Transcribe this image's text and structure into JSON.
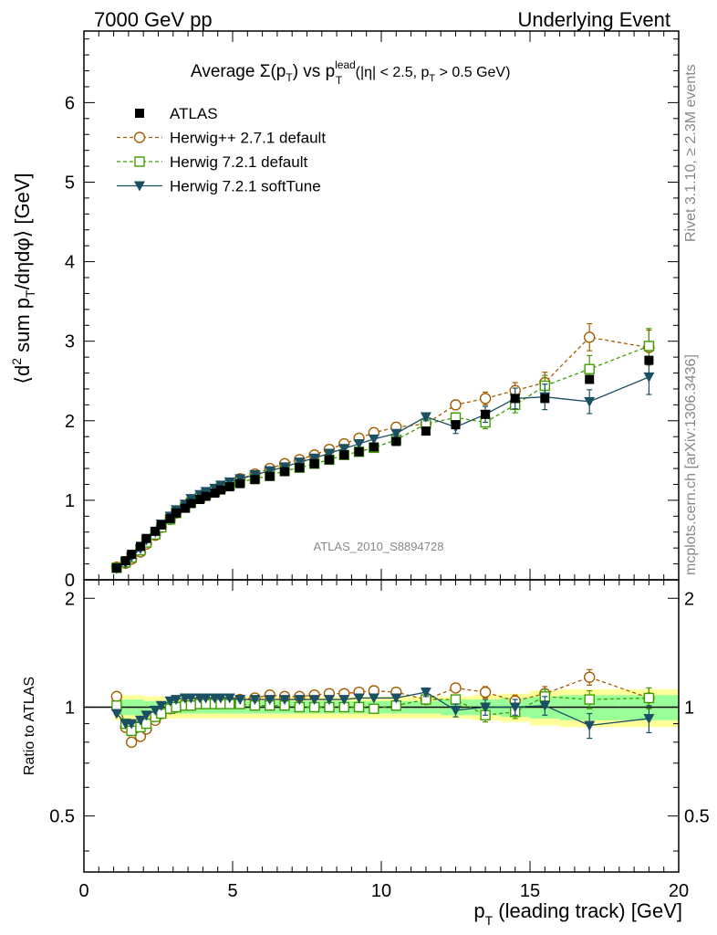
{
  "header": {
    "left": "7000 GeV pp",
    "right": "Underlying Event"
  },
  "side": {
    "rivet": "Rivet 3.1.10, ≥ 2.3M events",
    "mcplots": "mcplots.cern.ch [arXiv:1306.3436]"
  },
  "plot": {
    "title_pre": "Average ",
    "title_sigma": "Σ(p",
    "title_sub_T": "T",
    "title_mid": ") vs p",
    "title_sup_lead": "lead",
    "title_post": " (|η| < 2.5, p",
    "title_post2": " > 0.5 GeV)",
    "ylabel": "⟨d² sum p_T/dηdφ⟩ [GeV]",
    "ylabel_a": "⟨d",
    "ylabel_2": "2",
    "ylabel_b": " sum p",
    "ylabel_c": "/dηdφ⟩ [GeV]",
    "watermark": "ATLAS_2010_S8894728",
    "ratio_ylabel": "Ratio to ATLAS",
    "xlabel_a": "p",
    "xlabel_b": " (leading track) [GeV]"
  },
  "legend": [
    {
      "name": "ATLAS",
      "color": "#000000",
      "marker": "filled-square",
      "line": "none"
    },
    {
      "name": "Herwig++ 2.7.1 default",
      "color": "#a65c00",
      "marker": "open-circle",
      "line": "dashed"
    },
    {
      "name": "Herwig 7.2.1 default",
      "color": "#3f9c00",
      "marker": "open-square",
      "line": "dashed"
    },
    {
      "name": "Herwig 7.2.1 softTune",
      "color": "#1b4f63",
      "marker": "filled-triangle-down",
      "line": "solid"
    }
  ],
  "chart_data": [
    {
      "type": "scatter",
      "panel": "main",
      "xlim": [
        0,
        20
      ],
      "ylim": [
        0,
        6.9
      ],
      "x_ticks": [
        0,
        5,
        10,
        15,
        20
      ],
      "y_ticks": [
        0,
        1,
        2,
        3,
        4,
        5,
        6
      ],
      "x": [
        1.1,
        1.4,
        1.6,
        1.9,
        2.1,
        2.4,
        2.6,
        2.9,
        3.1,
        3.4,
        3.6,
        3.9,
        4.1,
        4.4,
        4.6,
        4.9,
        5.25,
        5.75,
        6.25,
        6.75,
        7.25,
        7.75,
        8.25,
        8.75,
        9.25,
        9.75,
        10.5,
        11.5,
        12.5,
        13.5,
        14.5,
        15.5,
        17.0,
        19.0
      ],
      "series": [
        {
          "name": "ATLAS",
          "values": [
            0.15,
            0.24,
            0.32,
            0.42,
            0.52,
            0.61,
            0.69,
            0.77,
            0.84,
            0.9,
            0.96,
            1.01,
            1.05,
            1.09,
            1.13,
            1.17,
            1.21,
            1.26,
            1.3,
            1.36,
            1.41,
            1.46,
            1.51,
            1.57,
            1.61,
            1.67,
            1.74,
            1.87,
            1.95,
            2.08,
            2.28,
            2.28,
            2.52,
            2.76
          ]
        },
        {
          "name": "Herwig++ 2.7.1 default",
          "values": [
            0.16,
            0.21,
            0.26,
            0.35,
            0.45,
            0.56,
            0.66,
            0.76,
            0.84,
            0.92,
            0.99,
            1.05,
            1.09,
            1.13,
            1.17,
            1.21,
            1.27,
            1.33,
            1.4,
            1.46,
            1.51,
            1.57,
            1.64,
            1.71,
            1.78,
            1.85,
            1.92,
            1.96,
            2.2,
            2.28,
            2.38,
            2.48,
            3.05,
            2.92
          ]
        },
        {
          "name": "Herwig 7.2.1 default",
          "values": [
            0.15,
            0.22,
            0.28,
            0.37,
            0.47,
            0.57,
            0.66,
            0.76,
            0.84,
            0.91,
            0.97,
            1.03,
            1.07,
            1.11,
            1.15,
            1.19,
            1.23,
            1.27,
            1.31,
            1.37,
            1.41,
            1.46,
            1.51,
            1.57,
            1.61,
            1.66,
            1.76,
            1.96,
            2.04,
            1.98,
            2.2,
            2.44,
            2.65,
            2.94
          ]
        },
        {
          "name": "Herwig 7.2.1 softTune",
          "values": [
            0.14,
            0.21,
            0.29,
            0.39,
            0.5,
            0.6,
            0.7,
            0.8,
            0.88,
            0.95,
            1.02,
            1.07,
            1.11,
            1.15,
            1.19,
            1.23,
            1.27,
            1.32,
            1.37,
            1.42,
            1.48,
            1.53,
            1.59,
            1.65,
            1.71,
            1.77,
            1.84,
            2.05,
            1.92,
            2.08,
            2.28,
            2.3,
            2.24,
            2.55
          ]
        }
      ],
      "errors": {
        "Herwig++ 2.7.1 default": [
          0,
          0,
          0,
          0,
          0,
          0,
          0,
          0,
          0,
          0,
          0,
          0,
          0,
          0,
          0,
          0,
          0,
          0,
          0,
          0,
          0,
          0,
          0,
          0,
          0,
          0,
          0.04,
          0.05,
          0.06,
          0.08,
          0.1,
          0.13,
          0.17,
          0.22
        ],
        "Herwig 7.2.1 default": [
          0,
          0,
          0,
          0,
          0,
          0,
          0,
          0,
          0,
          0,
          0,
          0,
          0,
          0,
          0,
          0,
          0,
          0,
          0,
          0,
          0,
          0,
          0,
          0,
          0,
          0,
          0.04,
          0.05,
          0.06,
          0.08,
          0.1,
          0.13,
          0.17,
          0.22
        ],
        "Herwig 7.2.1 softTune": [
          0,
          0,
          0,
          0,
          0,
          0,
          0,
          0,
          0,
          0,
          0,
          0,
          0,
          0,
          0,
          0,
          0,
          0,
          0,
          0,
          0,
          0,
          0,
          0,
          0,
          0,
          0.04,
          0.05,
          0.08,
          0.1,
          0.13,
          0.16,
          0.15,
          0.22
        ]
      }
    },
    {
      "type": "scatter",
      "panel": "ratio",
      "xlim": [
        0,
        20
      ],
      "ylim": [
        0.35,
        2.25
      ],
      "y_ticks": [
        0.5,
        1,
        2
      ],
      "x": [
        1.1,
        1.4,
        1.6,
        1.9,
        2.1,
        2.4,
        2.6,
        2.9,
        3.1,
        3.4,
        3.6,
        3.9,
        4.1,
        4.4,
        4.6,
        4.9,
        5.25,
        5.75,
        6.25,
        6.75,
        7.25,
        7.75,
        8.25,
        8.75,
        9.25,
        9.75,
        10.5,
        11.5,
        12.5,
        13.5,
        14.5,
        15.5,
        17.0,
        19.0
      ],
      "band_edges": [
        1.0,
        1.25,
        1.5,
        1.75,
        2.0,
        2.25,
        2.5,
        2.75,
        3.0,
        3.25,
        3.5,
        3.75,
        4.0,
        4.25,
        4.5,
        4.75,
        5.0,
        5.5,
        6.0,
        6.5,
        7.0,
        7.5,
        8.0,
        8.5,
        9.0,
        9.5,
        10.0,
        11.0,
        12.0,
        13.0,
        14.0,
        15.0,
        16.0,
        18.0,
        20.0
      ],
      "band_stat_half": [
        0.05,
        0.05,
        0.05,
        0.05,
        0.04,
        0.04,
        0.04,
        0.04,
        0.04,
        0.04,
        0.04,
        0.04,
        0.04,
        0.04,
        0.04,
        0.04,
        0.04,
        0.04,
        0.04,
        0.04,
        0.04,
        0.04,
        0.04,
        0.04,
        0.04,
        0.04,
        0.04,
        0.04,
        0.05,
        0.05,
        0.06,
        0.07,
        0.08,
        0.08
      ],
      "band_total_half": [
        0.08,
        0.08,
        0.08,
        0.08,
        0.07,
        0.07,
        0.07,
        0.07,
        0.07,
        0.07,
        0.07,
        0.07,
        0.07,
        0.07,
        0.07,
        0.07,
        0.07,
        0.07,
        0.07,
        0.07,
        0.07,
        0.07,
        0.07,
        0.07,
        0.07,
        0.07,
        0.07,
        0.07,
        0.07,
        0.08,
        0.09,
        0.11,
        0.12,
        0.12
      ],
      "series": [
        {
          "name": "Herwig++ 2.7.1 default",
          "values": [
            1.07,
            0.88,
            0.8,
            0.83,
            0.87,
            0.92,
            0.96,
            0.99,
            1.0,
            1.02,
            1.03,
            1.04,
            1.04,
            1.04,
            1.04,
            1.04,
            1.05,
            1.06,
            1.08,
            1.07,
            1.07,
            1.08,
            1.09,
            1.09,
            1.1,
            1.11,
            1.1,
            1.05,
            1.13,
            1.1,
            1.04,
            1.09,
            1.21,
            1.06
          ]
        },
        {
          "name": "Herwig 7.2.1 default",
          "values": [
            1.01,
            0.9,
            0.86,
            0.88,
            0.9,
            0.94,
            0.96,
            0.99,
            1.0,
            1.01,
            1.01,
            1.02,
            1.02,
            1.02,
            1.02,
            1.02,
            1.02,
            1.01,
            1.01,
            1.01,
            1.0,
            1.0,
            1.0,
            1.0,
            1.0,
            0.99,
            1.01,
            1.05,
            1.05,
            0.95,
            0.97,
            1.07,
            1.05,
            1.06
          ]
        },
        {
          "name": "Herwig 7.2.1 softTune",
          "values": [
            0.96,
            0.9,
            0.9,
            0.92,
            0.95,
            0.98,
            1.01,
            1.04,
            1.05,
            1.06,
            1.06,
            1.06,
            1.06,
            1.06,
            1.06,
            1.06,
            1.05,
            1.05,
            1.05,
            1.05,
            1.05,
            1.05,
            1.05,
            1.05,
            1.06,
            1.06,
            1.06,
            1.1,
            0.98,
            1.0,
            1.0,
            1.01,
            0.89,
            0.93
          ]
        }
      ],
      "errors": {
        "Herwig++ 2.7.1 default": [
          0,
          0,
          0,
          0,
          0,
          0,
          0,
          0,
          0,
          0,
          0,
          0,
          0,
          0,
          0,
          0,
          0,
          0,
          0,
          0,
          0,
          0,
          0,
          0,
          0,
          0,
          0.02,
          0.03,
          0.03,
          0.04,
          0.04,
          0.05,
          0.06,
          0.07
        ],
        "Herwig 7.2.1 default": [
          0,
          0,
          0,
          0,
          0,
          0,
          0,
          0,
          0,
          0,
          0,
          0,
          0,
          0,
          0,
          0,
          0,
          0,
          0,
          0,
          0,
          0,
          0,
          0,
          0,
          0,
          0.02,
          0.03,
          0.03,
          0.04,
          0.04,
          0.05,
          0.06,
          0.07
        ],
        "Herwig 7.2.1 softTune": [
          0,
          0,
          0,
          0,
          0,
          0,
          0,
          0,
          0,
          0,
          0,
          0,
          0,
          0,
          0,
          0,
          0,
          0,
          0,
          0,
          0,
          0,
          0,
          0,
          0,
          0,
          0.02,
          0.03,
          0.04,
          0.05,
          0.05,
          0.06,
          0.07,
          0.08
        ]
      }
    }
  ]
}
